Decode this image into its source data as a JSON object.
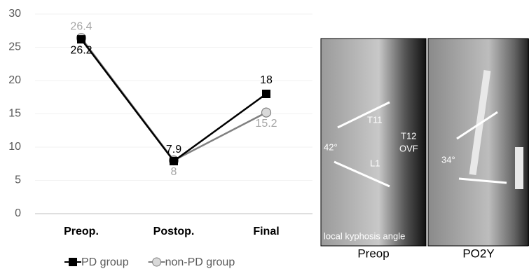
{
  "chart_data": {
    "type": "line",
    "categories": [
      "Preop.",
      "Postop.",
      "Final"
    ],
    "series": [
      {
        "name": "PD group",
        "color": "#000000",
        "marker": "square",
        "values": [
          26.2,
          7.9,
          18
        ]
      },
      {
        "name": "non-PD group",
        "color": "#808080",
        "marker": "circle",
        "values": [
          26.4,
          8,
          15.2
        ]
      }
    ],
    "ylim": [
      0,
      30
    ],
    "yticks": [
      0,
      5,
      10,
      15,
      20,
      25,
      30
    ],
    "grid": true,
    "legend": "bottom"
  },
  "images": [
    {
      "caption": "Preop",
      "labels": [
        "T11",
        "T12",
        "OVF",
        "42°",
        "L1",
        "local kyphosis angle"
      ]
    },
    {
      "caption": "PO2Y",
      "labels": [
        "34°"
      ]
    }
  ]
}
